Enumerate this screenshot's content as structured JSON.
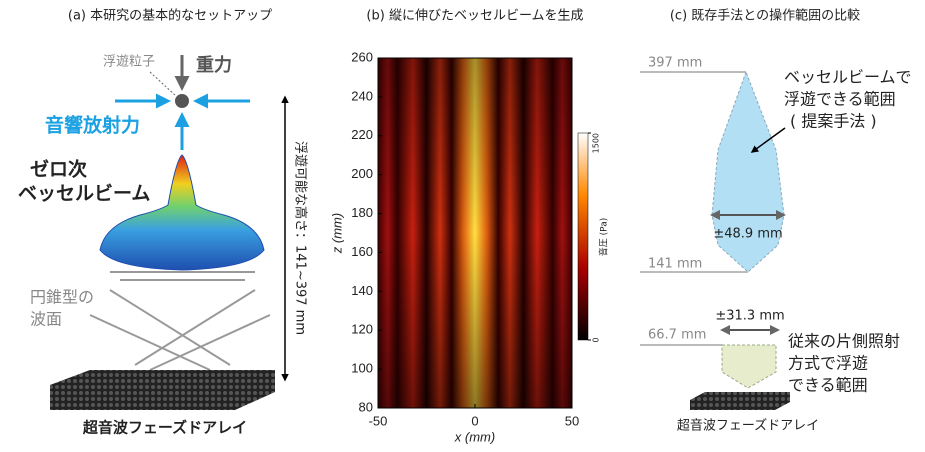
{
  "panel_a": {
    "title": "(a) 本研究の基本的なセットアップ",
    "particle": "浮遊粒子",
    "gravity": "重力",
    "radiation_force": "音響放射力",
    "beam": [
      "ゼロ次",
      "ベッセルビーム"
    ],
    "wavefront": [
      "円錐型の",
      "波面"
    ],
    "height": "浮遊可能な高さ：141~397 mm",
    "array": "超音波フェーズドアレイ"
  },
  "panel_b": {
    "title": "(b) 縦に伸びたベッセルビームを生成",
    "x_label": "x (mm)",
    "y_label": "z (mm)",
    "xlim": [
      -50,
      50
    ],
    "ylim": [
      80,
      260
    ],
    "xticks": [
      -50,
      0,
      50
    ],
    "yticks": [
      80,
      100,
      120,
      140,
      160,
      180,
      200,
      220,
      240,
      260
    ],
    "colorbar": {
      "label": "音圧 (Pa)",
      "lim": [
        0,
        1500
      ],
      "ticks": [
        0,
        1500
      ]
    }
  },
  "panel_c": {
    "title": "(c) 既存手法との操作範囲の比較",
    "top": "397 mm",
    "bottom": "141 mm",
    "width": "±48.9 mm",
    "proposed": [
      "ベッセルビームで",
      "浮遊できる範囲",
      "( 提案手法 )"
    ],
    "conventional_height": "66.7 mm",
    "conventional_width": "±31.3 mm",
    "conventional": [
      "従来の片側照射",
      "方式で浮遊",
      "できる範囲"
    ],
    "array": "超音波フェーズドアレイ"
  }
}
